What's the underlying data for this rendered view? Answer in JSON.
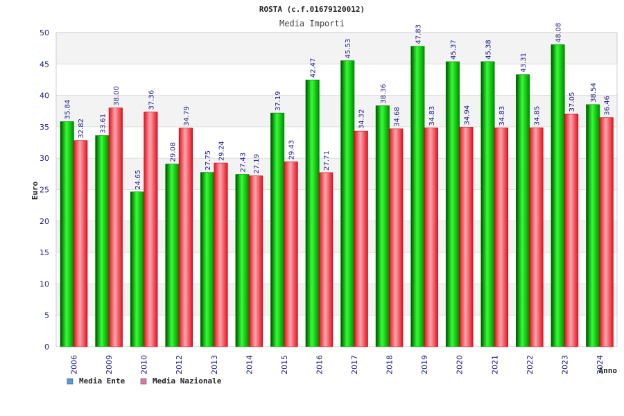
{
  "chart_data": {
    "type": "bar",
    "title": "ROSTA (c.f.01679120012)",
    "subtitle": "Media Importi",
    "xlabel": "Anno",
    "ylabel": "Euro",
    "ylim": [
      0,
      50
    ],
    "yticks": [
      0,
      5,
      10,
      15,
      20,
      25,
      30,
      35,
      40,
      45,
      50
    ],
    "grid": true,
    "legend_position": "bottom-left",
    "categories": [
      "2006",
      "2009",
      "2010",
      "2012",
      "2013",
      "2014",
      "2015",
      "2016",
      "2017",
      "2018",
      "2019",
      "2020",
      "2021",
      "2022",
      "2023",
      "2024"
    ],
    "series": [
      {
        "name": "Media Ente",
        "color": "#00b400",
        "legend_color": "#5599dd",
        "values": [
          35.84,
          33.61,
          24.65,
          29.08,
          27.75,
          27.43,
          37.19,
          42.47,
          45.53,
          38.36,
          47.83,
          45.37,
          45.38,
          43.31,
          48.08,
          38.54
        ],
        "labels": [
          "35.84",
          "33.61",
          "24.65",
          "29.08",
          "27.75",
          "27.43",
          "37.19",
          "42.47",
          "45.53",
          "38.36",
          "47.83",
          "45.37",
          "45.38",
          "43.31",
          "48.08",
          "38.54"
        ]
      },
      {
        "name": "Media Nazionale",
        "color": "#e8101e",
        "legend_color": "#dd77aa",
        "values": [
          32.82,
          38.0,
          37.36,
          34.79,
          29.24,
          27.19,
          29.43,
          27.71,
          34.32,
          34.68,
          34.83,
          34.94,
          34.83,
          34.85,
          37.05,
          36.46
        ],
        "labels": [
          "32.82",
          "38.00",
          "37.36",
          "34.79",
          "29.24",
          "27.19",
          "29.43",
          "27.71",
          "34.32",
          "34.68",
          "34.83",
          "34.94",
          "34.83",
          "34.85",
          "37.05",
          "36.46"
        ]
      }
    ]
  }
}
